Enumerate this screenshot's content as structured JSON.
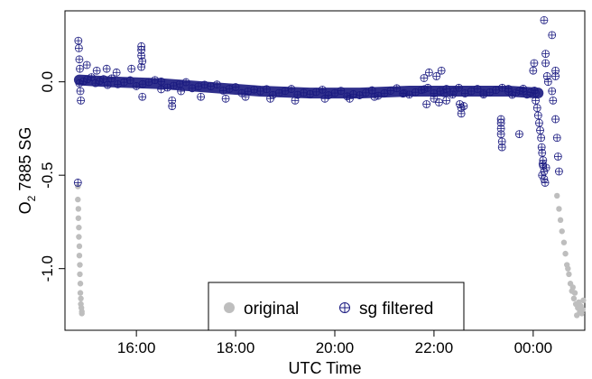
{
  "chart_data": {
    "type": "scatter",
    "xlabel": "UTC Time",
    "ylabel_main": "O",
    "ylabel_sub": "2",
    "ylabel_rest": " 7885 SG",
    "x_domain_hours": [
      14.56,
      25.04
    ],
    "ylim": [
      -1.33,
      0.38
    ],
    "x_ticks": [
      {
        "value": 16,
        "label": "16:00"
      },
      {
        "value": 18,
        "label": "18:00"
      },
      {
        "value": 20,
        "label": "20:00"
      },
      {
        "value": 22,
        "label": "22:00"
      },
      {
        "value": 24,
        "label": "00:00"
      }
    ],
    "y_ticks": [
      {
        "value": 0.0,
        "label": "0.0"
      },
      {
        "value": -0.5,
        "label": "-0.5"
      },
      {
        "value": -1.0,
        "label": "-1.0"
      }
    ],
    "series": [
      {
        "name": "original",
        "color": "#bebebe",
        "points": [
          [
            14.82,
            -0.56
          ],
          [
            14.82,
            -0.63
          ],
          [
            14.83,
            -0.68
          ],
          [
            14.83,
            -0.73
          ],
          [
            14.84,
            -0.78
          ],
          [
            14.84,
            -0.83
          ],
          [
            14.85,
            -0.88
          ],
          [
            14.85,
            -0.93
          ],
          [
            14.86,
            -0.98
          ],
          [
            14.86,
            -1.03
          ],
          [
            14.87,
            -1.08
          ],
          [
            14.87,
            -1.13
          ],
          [
            14.88,
            -1.16
          ],
          [
            14.88,
            -1.19
          ],
          [
            14.89,
            -1.21
          ],
          [
            14.9,
            -1.23
          ],
          [
            14.9,
            -1.24
          ],
          [
            24.48,
            -0.61
          ],
          [
            24.52,
            -0.68
          ],
          [
            24.55,
            -0.74
          ],
          [
            24.58,
            -0.8
          ],
          [
            24.62,
            -0.86
          ],
          [
            24.65,
            -0.92
          ],
          [
            24.68,
            -0.98
          ],
          [
            24.72,
            -1.03
          ],
          [
            24.75,
            -1.08
          ],
          [
            24.78,
            -1.12
          ],
          [
            24.82,
            -1.16
          ],
          [
            24.86,
            -1.19
          ],
          [
            24.9,
            -1.21
          ],
          [
            24.94,
            -1.23
          ],
          [
            24.98,
            -1.24
          ],
          [
            25.0,
            -1.22
          ],
          [
            24.92,
            -1.18
          ],
          [
            24.84,
            -1.13
          ],
          [
            24.96,
            -1.2
          ],
          [
            24.88,
            -1.25
          ],
          [
            25.01,
            -1.17
          ],
          [
            24.8,
            -1.1
          ],
          [
            24.7,
            -1.0
          ]
        ]
      },
      {
        "name": "sg filtered",
        "color": "#1a1a80",
        "band": [
          [
            14.85,
            0.01
          ],
          [
            15.5,
            0.0
          ],
          [
            16.5,
            -0.01
          ],
          [
            17.5,
            -0.03
          ],
          [
            18.5,
            -0.05
          ],
          [
            19.5,
            -0.06
          ],
          [
            20.5,
            -0.06
          ],
          [
            21.5,
            -0.05
          ],
          [
            22.5,
            -0.05
          ],
          [
            23.5,
            -0.05
          ],
          [
            24.1,
            -0.06
          ]
        ],
        "points": [
          [
            14.83,
            0.22
          ],
          [
            14.84,
            0.18
          ],
          [
            14.85,
            0.12
          ],
          [
            14.86,
            0.07
          ],
          [
            14.87,
            -0.05
          ],
          [
            14.88,
            -0.1
          ],
          [
            14.82,
            -0.54
          ],
          [
            15.0,
            0.09
          ],
          [
            15.2,
            0.06
          ],
          [
            15.4,
            0.07
          ],
          [
            15.6,
            0.05
          ],
          [
            15.9,
            0.07
          ],
          [
            16.1,
            0.19
          ],
          [
            16.1,
            0.17
          ],
          [
            16.1,
            0.14
          ],
          [
            16.12,
            0.11
          ],
          [
            16.1,
            0.08
          ],
          [
            16.12,
            -0.08
          ],
          [
            16.72,
            -0.1
          ],
          [
            16.72,
            -0.13
          ],
          [
            16.5,
            -0.04
          ],
          [
            16.9,
            -0.05
          ],
          [
            17.3,
            -0.08
          ],
          [
            17.8,
            -0.09
          ],
          [
            18.2,
            -0.08
          ],
          [
            18.7,
            -0.09
          ],
          [
            19.2,
            -0.1
          ],
          [
            19.8,
            -0.09
          ],
          [
            20.3,
            -0.09
          ],
          [
            20.8,
            -0.08
          ],
          [
            21.4,
            -0.06
          ],
          [
            21.8,
            -0.04
          ],
          [
            21.8,
            0.02
          ],
          [
            21.85,
            -0.12
          ],
          [
            21.9,
            0.05
          ],
          [
            22.0,
            -0.09
          ],
          [
            22.05,
            0.03
          ],
          [
            22.1,
            -0.11
          ],
          [
            22.15,
            0.06
          ],
          [
            22.2,
            -0.06
          ],
          [
            22.25,
            -0.1
          ],
          [
            22.4,
            -0.05
          ],
          [
            22.52,
            -0.12
          ],
          [
            22.55,
            -0.14
          ],
          [
            22.55,
            -0.17
          ],
          [
            22.6,
            -0.13
          ],
          [
            23.35,
            -0.2
          ],
          [
            23.35,
            -0.22
          ],
          [
            23.35,
            -0.25
          ],
          [
            23.35,
            -0.28
          ],
          [
            23.37,
            -0.32
          ],
          [
            23.37,
            -0.35
          ],
          [
            23.72,
            -0.28
          ],
          [
            23.0,
            -0.06
          ],
          [
            23.5,
            -0.05
          ],
          [
            23.8,
            -0.05
          ],
          [
            24.0,
            0.06
          ],
          [
            24.02,
            0.1
          ],
          [
            24.05,
            -0.06
          ],
          [
            24.05,
            -0.1
          ],
          [
            24.08,
            -0.14
          ],
          [
            24.1,
            -0.18
          ],
          [
            24.12,
            -0.22
          ],
          [
            24.14,
            -0.26
          ],
          [
            24.16,
            -0.3
          ],
          [
            24.17,
            -0.35
          ],
          [
            24.18,
            -0.38
          ],
          [
            24.2,
            -0.42
          ],
          [
            24.2,
            -0.45
          ],
          [
            24.22,
            -0.48
          ],
          [
            24.22,
            -0.52
          ],
          [
            24.18,
            -0.5
          ],
          [
            24.26,
            -0.46
          ],
          [
            24.24,
            -0.54
          ],
          [
            24.19,
            -0.44
          ],
          [
            24.25,
            0.15
          ],
          [
            24.25,
            0.1
          ],
          [
            24.28,
            0.03
          ],
          [
            24.3,
            0.0
          ],
          [
            24.22,
            0.33
          ],
          [
            24.38,
            0.25
          ],
          [
            24.45,
            0.06
          ],
          [
            24.45,
            0.03
          ],
          [
            24.38,
            -0.05
          ],
          [
            24.4,
            -0.1
          ],
          [
            24.45,
            -0.2
          ],
          [
            24.48,
            -0.3
          ],
          [
            24.5,
            -0.4
          ],
          [
            24.52,
            -0.48
          ]
        ]
      }
    ],
    "legend": {
      "placement": "bottom-center",
      "items": [
        {
          "label": "original",
          "marker": "filled-circle"
        },
        {
          "label": "sg filtered",
          "marker": "circle-plus"
        }
      ]
    }
  }
}
